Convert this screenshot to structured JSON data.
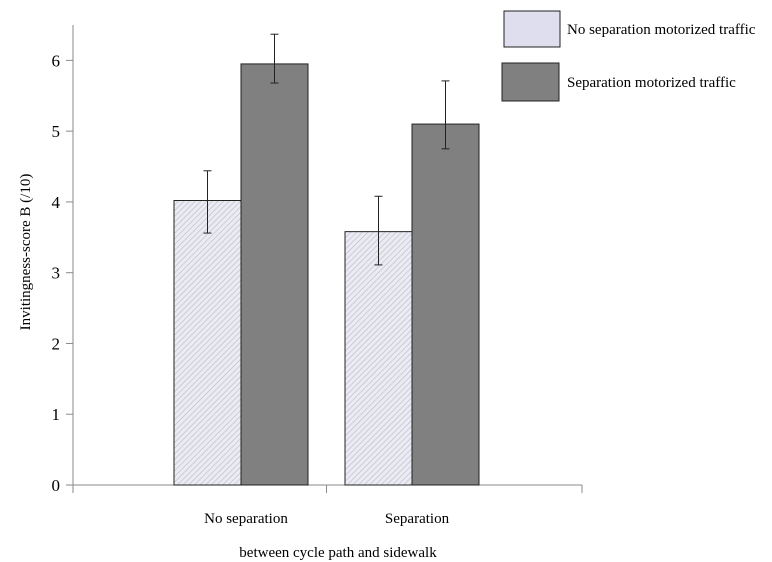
{
  "chart_data": {
    "type": "bar",
    "title": "",
    "xlabel": "between cycle path and sidewalk",
    "ylabel": "Invitingness-score B   (/10)",
    "ylim": [
      0,
      6.5
    ],
    "yticks": [
      0,
      1,
      2,
      3,
      4,
      5,
      6
    ],
    "categories": [
      "No separation",
      "Separation"
    ],
    "series": [
      {
        "name": "No separation motorized traffic",
        "values": [
          4.02,
          3.58
        ],
        "error_low": [
          3.56,
          3.11
        ],
        "error_high": [
          4.44,
          4.08
        ],
        "color": "#dedeef",
        "pattern": "diagonal-hatch"
      },
      {
        "name": "Separation motorized traffic",
        "values": [
          5.95,
          5.1
        ],
        "error_low": [
          5.68,
          4.75
        ],
        "error_high": [
          6.37,
          5.71
        ],
        "color": "#808080"
      }
    ],
    "legend_position": "top-right",
    "grid": false
  }
}
